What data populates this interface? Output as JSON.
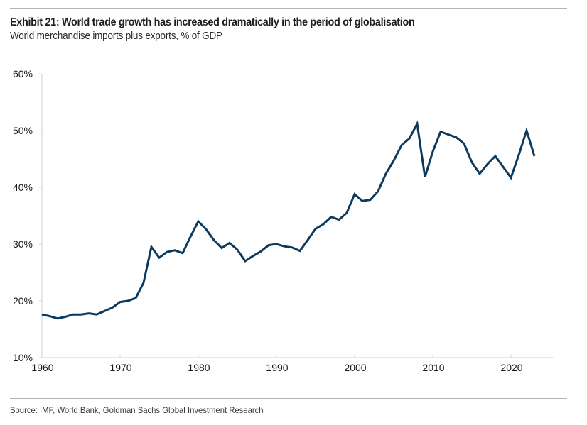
{
  "header": {
    "title": "Exhibit 21: World trade growth has increased dramatically in the period of globalisation",
    "subtitle": "World merchandise imports plus exports, % of GDP"
  },
  "footer": {
    "source": "Source: IMF, World Bank, Goldman Sachs Global Investment Research"
  },
  "colors": {
    "line": "#0b3a5e",
    "axis": "#d9d9d9",
    "rule": "#b4b4b4"
  },
  "chart_data": {
    "type": "line",
    "title": "Exhibit 21: World trade growth has increased dramatically in the period of globalisation",
    "subtitle": "World merchandise imports plus exports, % of GDP",
    "xlabel": "",
    "ylabel": "",
    "xlim": [
      1960,
      2025
    ],
    "ylim": [
      10,
      60
    ],
    "grid": false,
    "legend": "none",
    "x_ticks": [
      1960,
      1970,
      1980,
      1990,
      2000,
      2010,
      2020
    ],
    "x_tick_labels": [
      "1960",
      "1970",
      "1980",
      "1990",
      "2000",
      "2010",
      "2020"
    ],
    "y_ticks": [
      10,
      20,
      30,
      40,
      50,
      60
    ],
    "y_tick_labels": [
      "10%",
      "20%",
      "30%",
      "40%",
      "50%",
      "60%"
    ],
    "x": [
      1960,
      1961,
      1962,
      1963,
      1964,
      1965,
      1966,
      1967,
      1968,
      1969,
      1970,
      1971,
      1972,
      1973,
      1974,
      1975,
      1976,
      1977,
      1978,
      1979,
      1980,
      1981,
      1982,
      1983,
      1984,
      1985,
      1986,
      1987,
      1988,
      1989,
      1990,
      1991,
      1992,
      1993,
      1994,
      1995,
      1996,
      1997,
      1998,
      1999,
      2000,
      2001,
      2002,
      2003,
      2004,
      2005,
      2006,
      2007,
      2008,
      2009,
      2010,
      2011,
      2012,
      2013,
      2014,
      2015,
      2016,
      2017,
      2018,
      2019,
      2020,
      2021,
      2022,
      2023
    ],
    "series": [
      {
        "name": "World merchandise imports plus exports, % of GDP",
        "values": [
          17.6,
          17.3,
          16.9,
          17.2,
          17.6,
          17.6,
          17.8,
          17.6,
          18.2,
          18.8,
          19.8,
          20.0,
          20.5,
          23.2,
          29.5,
          27.6,
          28.6,
          28.9,
          28.4,
          31.3,
          34.0,
          32.6,
          30.7,
          29.3,
          30.2,
          29.0,
          27.0,
          27.9,
          28.7,
          29.8,
          30.0,
          29.6,
          29.4,
          28.8,
          30.7,
          32.7,
          33.5,
          34.8,
          34.3,
          35.5,
          38.8,
          37.6,
          37.8,
          39.3,
          42.4,
          44.7,
          47.4,
          48.6,
          51.2,
          41.8,
          46.3,
          49.8,
          49.3,
          48.8,
          47.7,
          44.4,
          42.4,
          44.1,
          45.5,
          43.6,
          41.7,
          45.7,
          50.0,
          45.5
        ]
      }
    ]
  }
}
